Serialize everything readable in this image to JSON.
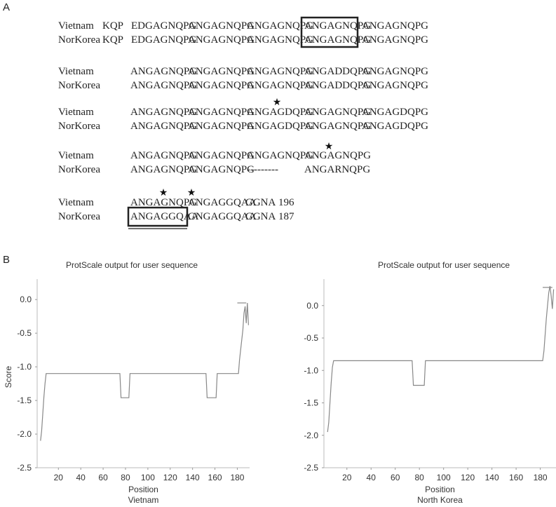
{
  "panel_a_label": "A",
  "panel_b_label": "B",
  "alignment": {
    "blocks": [
      {
        "rows": [
          {
            "name": "Vietnam",
            "segments": [
              "KQP",
              "EDGAGNQPG",
              "ANGAGNQPG",
              "ANGAGNQPG",
              "ANGAGNQPG",
              "ANGAGNQPG"
            ]
          },
          {
            "name": "NorKorea",
            "segments": [
              "KQP",
              "EDGAGNQPG",
              "ANGAGNQPG",
              "ANGAGNQPG",
              "ANGAGNQPG",
              "ANGAGNQPG"
            ]
          }
        ]
      },
      {
        "rows": [
          {
            "name": "Vietnam",
            "segments": [
              "ANGAGNQPG",
              "ANGAGNQPG",
              "ANGAGNQPG",
              "ANGADDQPG",
              "ANGAGNQPG"
            ]
          },
          {
            "name": "NorKorea",
            "segments": [
              "ANGAGNQPG",
              "ANGAGNQPG",
              "ANGAGNQPG",
              "ANGADDQPG",
              "ANGAGNQPG"
            ]
          }
        ]
      },
      {
        "rows": [
          {
            "name": "Vietnam",
            "segments": [
              "ANGAGNQPG",
              "ANGAGNQPG",
              "ANGAGDQPG",
              "ANGAGNQPG",
              "ANGAGDQPG"
            ]
          },
          {
            "name": "NorKorea",
            "segments": [
              "ANGAGNQPG",
              "ANGAGNQPG",
              "ANGAGDQPG",
              "ANGAGNQPG",
              "ANGAGDQPG"
            ]
          }
        ]
      },
      {
        "rows": [
          {
            "name": "Vietnam",
            "segments": [
              "ANGAGNQPG",
              "ANGAGNQPG",
              "ANGAGNQPG",
              "ANGAGNQPG"
            ]
          },
          {
            "name": "NorKorea",
            "segments": [
              "ANGAGNQPG",
              "ANGAGNQPG",
              "---------",
              "ANGARNQPG"
            ]
          }
        ]
      },
      {
        "rows": [
          {
            "name": "Vietnam",
            "segments": [
              "ANGAGNQPG",
              "ANGAGGQAA",
              "GGNA",
              "196"
            ]
          },
          {
            "name": "NorKorea",
            "segments": [
              "ANGAGGQAA",
              "GNGAGGQAA",
              "GGNA",
              "187"
            ]
          }
        ]
      }
    ],
    "star_symbol": "★"
  },
  "chart_data": [
    {
      "type": "line",
      "title": "ProtScale output for user sequence",
      "xlabel": "Position",
      "sublabel": "Vietnam",
      "ylabel": "Score",
      "xlim": [
        1,
        191
      ],
      "ylim": [
        -2.5,
        0.2
      ],
      "xticks": [
        20,
        40,
        60,
        80,
        100,
        120,
        140,
        160,
        180
      ],
      "yticks": [
        0.0,
        -0.5,
        -1.0,
        -1.5,
        -2.0,
        -2.5
      ],
      "ytick_labels": [
        "0.0",
        "-0.5",
        "-1.0",
        "-1.5",
        "-2.0",
        "-2.5"
      ],
      "series": [
        {
          "x": [
            4,
            5,
            6,
            7,
            8,
            9,
            75,
            76,
            77,
            83,
            84,
            152,
            153,
            154,
            161,
            162,
            180,
            181,
            182,
            183,
            184,
            185,
            186,
            187,
            188,
            189,
            190
          ],
          "y": [
            -2.1,
            -1.95,
            -1.7,
            -1.45,
            -1.25,
            -1.1,
            -1.1,
            -1.46,
            -1.46,
            -1.46,
            -1.1,
            -1.1,
            -1.46,
            -1.46,
            -1.46,
            -1.1,
            -1.1,
            -1.1,
            -0.9,
            -0.75,
            -0.6,
            -0.45,
            -0.2,
            -0.1,
            -0.35,
            -0.05,
            -0.38
          ]
        }
      ],
      "top_marker": {
        "x": [
          180,
          188
        ],
        "y": [
          -0.05,
          -0.05
        ]
      }
    },
    {
      "type": "line",
      "title": "ProtScale output for user sequence",
      "xlabel": "Position",
      "sublabel": "North Korea",
      "ylabel": "",
      "xlim": [
        1,
        193
      ],
      "ylim": [
        -2.5,
        0.3
      ],
      "xticks": [
        20,
        40,
        60,
        80,
        100,
        120,
        140,
        160,
        180
      ],
      "yticks": [
        0.0,
        -0.5,
        -1.0,
        -1.5,
        -2.0,
        -2.5
      ],
      "ytick_labels": [
        "0.0",
        "-0.5",
        "-1.0",
        "-1.5",
        "-2.0",
        "-2.5"
      ],
      "series": [
        {
          "x": [
            4,
            5,
            6,
            7,
            8,
            9,
            74,
            75,
            76,
            84,
            85,
            181,
            182,
            183,
            184,
            185,
            186,
            187,
            188,
            189,
            190,
            191
          ],
          "y": [
            -1.95,
            -1.8,
            -1.5,
            -1.2,
            -0.95,
            -0.85,
            -0.85,
            -1.23,
            -1.23,
            -1.23,
            -0.85,
            -0.85,
            -0.85,
            -0.7,
            -0.45,
            -0.2,
            0.0,
            0.2,
            0.3,
            0.15,
            -0.05,
            0.25
          ]
        }
      ],
      "top_marker": {
        "x": [
          182,
          190
        ],
        "y": [
          0.28,
          0.28
        ]
      }
    }
  ]
}
